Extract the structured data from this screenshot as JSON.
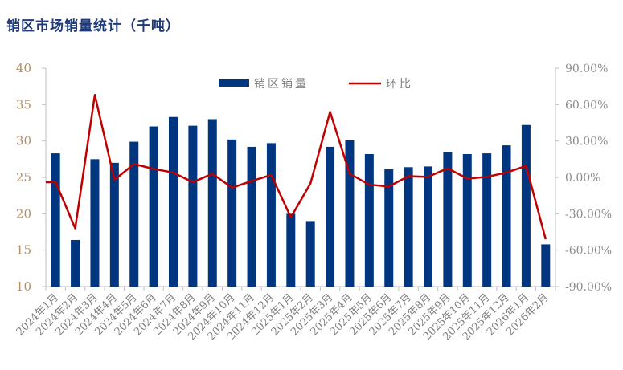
{
  "title": "销区市场销量统计（千吨）",
  "chart_data": {
    "type": "bar+line",
    "title": "销区市场销量统计（千吨）",
    "categories": [
      "2024年1月",
      "2024年2月",
      "2024年3月",
      "2024年4月",
      "2024年5月",
      "2024年6月",
      "2024年7月",
      "2024年8月",
      "2024年9月",
      "2024年10月",
      "2024年11月",
      "2024年12月",
      "2025年1月",
      "2025年2月",
      "2025年3月",
      "2025年4月",
      "2025年5月",
      "2025年6月",
      "2025年7月",
      "2025年8月",
      "2025年9月",
      "2025年10月",
      "2025年11月",
      "2025年12月",
      "2026年1月",
      "2026年2月"
    ],
    "series": [
      {
        "name": "销区销量",
        "type": "bar",
        "axis": "left",
        "color": "#003580",
        "values": [
          28.3,
          16.4,
          27.5,
          27.0,
          29.9,
          32.0,
          33.3,
          32.1,
          33.0,
          30.2,
          29.2,
          29.7,
          20.0,
          19.0,
          29.2,
          30.1,
          28.2,
          26.1,
          26.4,
          26.5,
          28.5,
          28.2,
          28.3,
          29.4,
          32.2,
          15.8
        ]
      },
      {
        "name": "环比",
        "type": "line",
        "axis": "right",
        "color": "#c00000",
        "values": [
          -4,
          -42,
          68,
          -2,
          11,
          7,
          4,
          -4,
          3,
          -8.5,
          -3,
          2,
          -33,
          -5,
          54,
          3,
          -6,
          -7.5,
          1,
          0.4,
          7.5,
          -1,
          0.4,
          4,
          9.5,
          -51
        ]
      }
    ],
    "left_axis": {
      "ylim": [
        10,
        40
      ],
      "ticks": [
        "10",
        "15",
        "20",
        "25",
        "30",
        "35",
        "40"
      ]
    },
    "right_axis": {
      "ylim": [
        -90,
        90
      ],
      "ticks": [
        "-90.00%",
        "-60.00%",
        "-30.00%",
        "0.00%",
        "30.00%",
        "60.00%",
        "90.00%"
      ]
    },
    "grid": false,
    "legend": "top-center"
  }
}
